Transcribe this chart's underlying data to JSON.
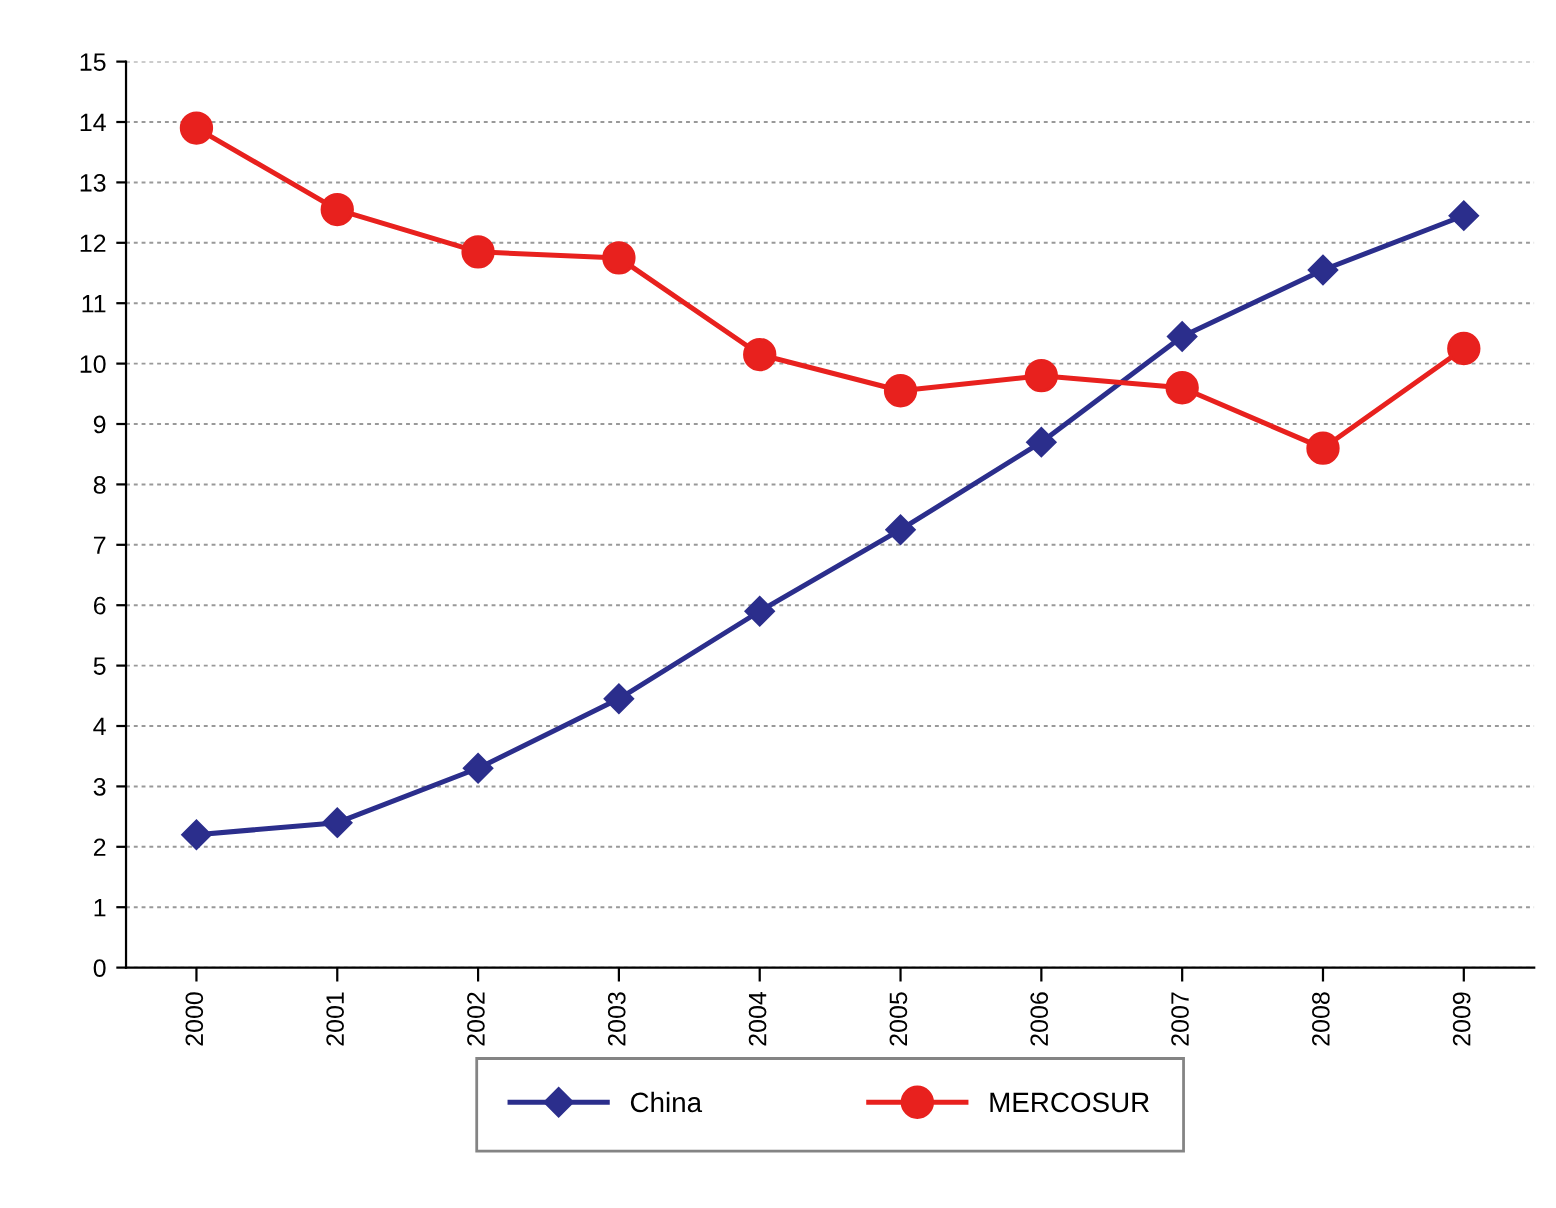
{
  "chart_data": {
    "type": "line",
    "categories": [
      "2000",
      "2001",
      "2002",
      "2003",
      "2004",
      "2005",
      "2006",
      "2007",
      "2008",
      "2009"
    ],
    "series": [
      {
        "name": "China",
        "color": "#2b2e8c",
        "marker": "diamond",
        "values": [
          2.2,
          2.4,
          3.3,
          4.45,
          5.9,
          7.25,
          8.7,
          10.45,
          11.55,
          12.45
        ]
      },
      {
        "name": "MERCOSUR",
        "color": "#e8211e",
        "marker": "circle",
        "values": [
          13.9,
          12.55,
          11.85,
          11.75,
          10.15,
          9.55,
          9.8,
          9.6,
          8.6,
          10.25
        ]
      }
    ],
    "ylim": [
      0,
      15
    ],
    "yticks": [
      0,
      1,
      2,
      3,
      4,
      5,
      6,
      7,
      8,
      9,
      10,
      11,
      12,
      13,
      14,
      15
    ],
    "grid": "y",
    "legend": "bottom",
    "line_style": "solid"
  }
}
